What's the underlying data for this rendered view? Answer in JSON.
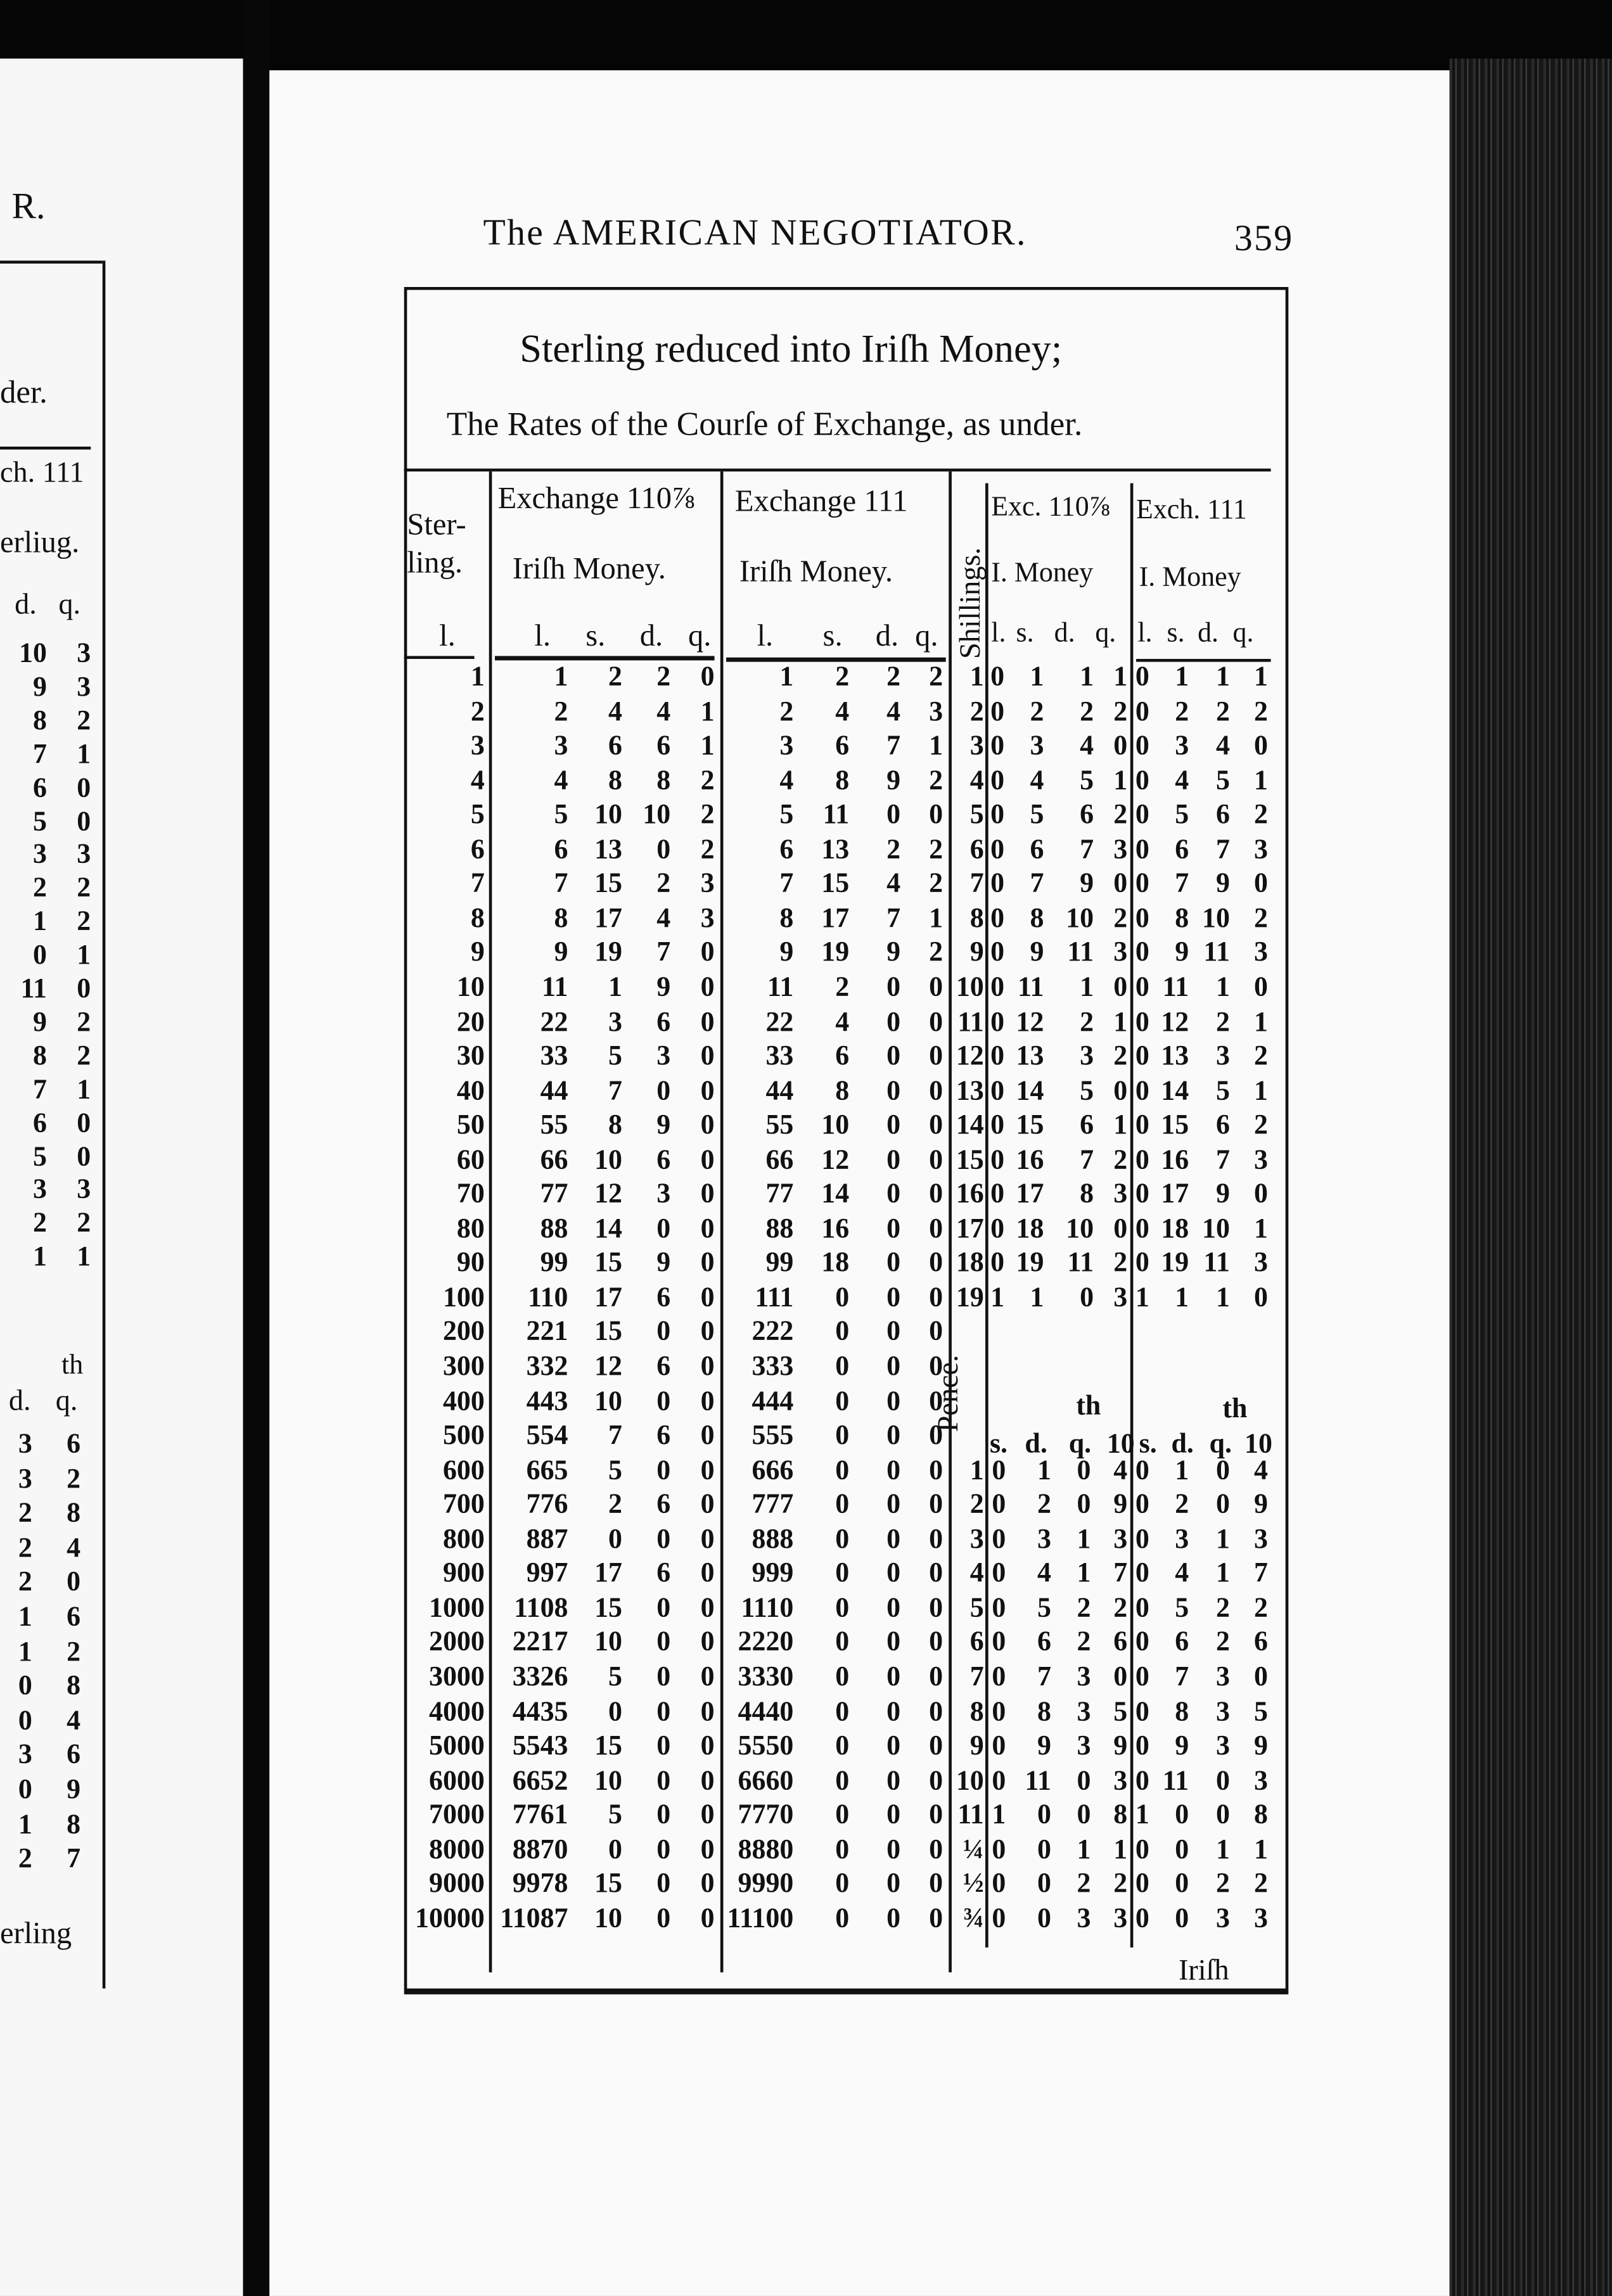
{
  "running_head": {
    "title": "The AMERICAN NEGOTIATOR.",
    "page_number": "359"
  },
  "left_page": {
    "running_head_fragment": "R.",
    "fragments": [
      "der.",
      "ch. 111",
      "erliug."
    ],
    "col_headers": [
      "d.",
      "q."
    ],
    "upper_rows": [
      [
        "10",
        "3"
      ],
      [
        "9",
        "3"
      ],
      [
        "8",
        "2"
      ],
      [
        "7",
        "1"
      ],
      [
        "6",
        "0"
      ],
      [
        "5",
        "0"
      ],
      [
        "3",
        "3"
      ],
      [
        "2",
        "2"
      ],
      [
        "1",
        "2"
      ],
      [
        "0",
        "1"
      ],
      [
        "11",
        "0"
      ],
      [
        "9",
        "2"
      ],
      [
        "8",
        "2"
      ],
      [
        "7",
        "1"
      ],
      [
        "6",
        "0"
      ],
      [
        "5",
        "0"
      ],
      [
        "3",
        "3"
      ],
      [
        "2",
        "2"
      ],
      [
        "1",
        "1"
      ]
    ],
    "th_label": "th",
    "lower_headers": [
      "d.",
      "q."
    ],
    "lower_rows": [
      [
        "3",
        "6"
      ],
      [
        "3",
        "2"
      ],
      [
        "2",
        "8"
      ],
      [
        "2",
        "4"
      ],
      [
        "2",
        "0"
      ],
      [
        "1",
        "6"
      ],
      [
        "1",
        "2"
      ],
      [
        "0",
        "8"
      ],
      [
        "0",
        "4"
      ],
      [
        "3",
        "6"
      ],
      [
        "0",
        "9"
      ],
      [
        "1",
        "8"
      ],
      [
        "2",
        "7"
      ]
    ],
    "catchword_fragment": "erling"
  },
  "table": {
    "title": "Sterling reduced into Iriſh Money;",
    "subtitle": "The Rates of the Courſe of Exchange, as under.",
    "headers": {
      "sterling": [
        "Ster-",
        "ling.",
        "l."
      ],
      "ex110": {
        "title": "Exchange 110⅞",
        "sub": "Iriſh Money.",
        "units": [
          "l.",
          "s.",
          "d.",
          "q."
        ]
      },
      "ex111": {
        "title": "Exchange 111",
        "sub": "Iriſh Money.",
        "units": [
          "l.",
          "s.",
          "d.",
          "q."
        ]
      },
      "shillings": "Shillings.",
      "exc110": {
        "title": "Exc. 110⅞",
        "sub": "I. Money",
        "units": [
          "l.",
          "s.",
          "d.",
          "q."
        ]
      },
      "exch111": {
        "title": "Exch. 111",
        "sub": "I. Money",
        "units": [
          "l.",
          "s.",
          "d.",
          "q."
        ]
      },
      "pence": "Pence.",
      "pence_units": [
        "s.",
        "d.",
        "q.",
        "10"
      ],
      "pence_th": "th"
    },
    "sterling": [
      "1",
      "2",
      "3",
      "4",
      "5",
      "6",
      "7",
      "8",
      "9",
      "10",
      "20",
      "30",
      "40",
      "50",
      "60",
      "70",
      "80",
      "90",
      "100",
      "200",
      "300",
      "400",
      "500",
      "600",
      "700",
      "800",
      "900",
      "1000",
      "2000",
      "3000",
      "4000",
      "5000",
      "6000",
      "7000",
      "8000",
      "9000",
      "10000"
    ],
    "ex110": [
      [
        "1",
        "2",
        "2",
        "0"
      ],
      [
        "2",
        "4",
        "4",
        "1"
      ],
      [
        "3",
        "6",
        "6",
        "1"
      ],
      [
        "4",
        "8",
        "8",
        "2"
      ],
      [
        "5",
        "10",
        "10",
        "2"
      ],
      [
        "6",
        "13",
        "0",
        "2"
      ],
      [
        "7",
        "15",
        "2",
        "3"
      ],
      [
        "8",
        "17",
        "4",
        "3"
      ],
      [
        "9",
        "19",
        "7",
        "0"
      ],
      [
        "11",
        "1",
        "9",
        "0"
      ],
      [
        "22",
        "3",
        "6",
        "0"
      ],
      [
        "33",
        "5",
        "3",
        "0"
      ],
      [
        "44",
        "7",
        "0",
        "0"
      ],
      [
        "55",
        "8",
        "9",
        "0"
      ],
      [
        "66",
        "10",
        "6",
        "0"
      ],
      [
        "77",
        "12",
        "3",
        "0"
      ],
      [
        "88",
        "14",
        "0",
        "0"
      ],
      [
        "99",
        "15",
        "9",
        "0"
      ],
      [
        "110",
        "17",
        "6",
        "0"
      ],
      [
        "221",
        "15",
        "0",
        "0"
      ],
      [
        "332",
        "12",
        "6",
        "0"
      ],
      [
        "443",
        "10",
        "0",
        "0"
      ],
      [
        "554",
        "7",
        "6",
        "0"
      ],
      [
        "665",
        "5",
        "0",
        "0"
      ],
      [
        "776",
        "2",
        "6",
        "0"
      ],
      [
        "887",
        "0",
        "0",
        "0"
      ],
      [
        "997",
        "17",
        "6",
        "0"
      ],
      [
        "1108",
        "15",
        "0",
        "0"
      ],
      [
        "2217",
        "10",
        "0",
        "0"
      ],
      [
        "3326",
        "5",
        "0",
        "0"
      ],
      [
        "4435",
        "0",
        "0",
        "0"
      ],
      [
        "5543",
        "15",
        "0",
        "0"
      ],
      [
        "6652",
        "10",
        "0",
        "0"
      ],
      [
        "7761",
        "5",
        "0",
        "0"
      ],
      [
        "8870",
        "0",
        "0",
        "0"
      ],
      [
        "9978",
        "15",
        "0",
        "0"
      ],
      [
        "11087",
        "10",
        "0",
        "0"
      ]
    ],
    "ex111": [
      [
        "1",
        "2",
        "2",
        "2"
      ],
      [
        "2",
        "4",
        "4",
        "3"
      ],
      [
        "3",
        "6",
        "7",
        "1"
      ],
      [
        "4",
        "8",
        "9",
        "2"
      ],
      [
        "5",
        "11",
        "0",
        "0"
      ],
      [
        "6",
        "13",
        "2",
        "2"
      ],
      [
        "7",
        "15",
        "4",
        "2"
      ],
      [
        "8",
        "17",
        "7",
        "1"
      ],
      [
        "9",
        "19",
        "9",
        "2"
      ],
      [
        "11",
        "2",
        "0",
        "0"
      ],
      [
        "22",
        "4",
        "0",
        "0"
      ],
      [
        "33",
        "6",
        "0",
        "0"
      ],
      [
        "44",
        "8",
        "0",
        "0"
      ],
      [
        "55",
        "10",
        "0",
        "0"
      ],
      [
        "66",
        "12",
        "0",
        "0"
      ],
      [
        "77",
        "14",
        "0",
        "0"
      ],
      [
        "88",
        "16",
        "0",
        "0"
      ],
      [
        "99",
        "18",
        "0",
        "0"
      ],
      [
        "111",
        "0",
        "0",
        "0"
      ],
      [
        "222",
        "0",
        "0",
        "0"
      ],
      [
        "333",
        "0",
        "0",
        "0"
      ],
      [
        "444",
        "0",
        "0",
        "0"
      ],
      [
        "555",
        "0",
        "0",
        "0"
      ],
      [
        "666",
        "0",
        "0",
        "0"
      ],
      [
        "777",
        "0",
        "0",
        "0"
      ],
      [
        "888",
        "0",
        "0",
        "0"
      ],
      [
        "999",
        "0",
        "0",
        "0"
      ],
      [
        "1110",
        "0",
        "0",
        "0"
      ],
      [
        "2220",
        "0",
        "0",
        "0"
      ],
      [
        "3330",
        "0",
        "0",
        "0"
      ],
      [
        "4440",
        "0",
        "0",
        "0"
      ],
      [
        "5550",
        "0",
        "0",
        "0"
      ],
      [
        "6660",
        "0",
        "0",
        "0"
      ],
      [
        "7770",
        "0",
        "0",
        "0"
      ],
      [
        "8880",
        "0",
        "0",
        "0"
      ],
      [
        "9990",
        "0",
        "0",
        "0"
      ],
      [
        "11100",
        "0",
        "0",
        "0"
      ]
    ],
    "shillings": [
      "1",
      "2",
      "3",
      "4",
      "5",
      "6",
      "7",
      "8",
      "9",
      "10",
      "11",
      "12",
      "13",
      "14",
      "15",
      "16",
      "17",
      "18",
      "19"
    ],
    "shil_exc110": [
      [
        "0",
        "1",
        "1",
        "1"
      ],
      [
        "0",
        "2",
        "2",
        "2"
      ],
      [
        "0",
        "3",
        "4",
        "0"
      ],
      [
        "0",
        "4",
        "5",
        "1"
      ],
      [
        "0",
        "5",
        "6",
        "2"
      ],
      [
        "0",
        "6",
        "7",
        "3"
      ],
      [
        "0",
        "7",
        "9",
        "0"
      ],
      [
        "0",
        "8",
        "10",
        "2"
      ],
      [
        "0",
        "9",
        "11",
        "3"
      ],
      [
        "0",
        "11",
        "1",
        "0"
      ],
      [
        "0",
        "12",
        "2",
        "1"
      ],
      [
        "0",
        "13",
        "3",
        "2"
      ],
      [
        "0",
        "14",
        "5",
        "0"
      ],
      [
        "0",
        "15",
        "6",
        "1"
      ],
      [
        "0",
        "16",
        "7",
        "2"
      ],
      [
        "0",
        "17",
        "8",
        "3"
      ],
      [
        "0",
        "18",
        "10",
        "0"
      ],
      [
        "0",
        "19",
        "11",
        "2"
      ],
      [
        "1",
        "1",
        "0",
        "3"
      ]
    ],
    "shil_exch111": [
      [
        "0",
        "1",
        "1",
        "1"
      ],
      [
        "0",
        "2",
        "2",
        "2"
      ],
      [
        "0",
        "3",
        "4",
        "0"
      ],
      [
        "0",
        "4",
        "5",
        "1"
      ],
      [
        "0",
        "5",
        "6",
        "2"
      ],
      [
        "0",
        "6",
        "7",
        "3"
      ],
      [
        "0",
        "7",
        "9",
        "0"
      ],
      [
        "0",
        "8",
        "10",
        "2"
      ],
      [
        "0",
        "9",
        "11",
        "3"
      ],
      [
        "0",
        "11",
        "1",
        "0"
      ],
      [
        "0",
        "12",
        "2",
        "1"
      ],
      [
        "0",
        "13",
        "3",
        "2"
      ],
      [
        "0",
        "14",
        "5",
        "1"
      ],
      [
        "0",
        "15",
        "6",
        "2"
      ],
      [
        "0",
        "16",
        "7",
        "3"
      ],
      [
        "0",
        "17",
        "9",
        "0"
      ],
      [
        "0",
        "18",
        "10",
        "1"
      ],
      [
        "0",
        "19",
        "11",
        "3"
      ],
      [
        "1",
        "1",
        "1",
        "0"
      ]
    ],
    "pence": [
      "1",
      "2",
      "3",
      "4",
      "5",
      "6",
      "7",
      "8",
      "9",
      "10",
      "11",
      "¼",
      "½",
      "¾"
    ],
    "pence_exc110": [
      [
        "0",
        "1",
        "0",
        "4"
      ],
      [
        "0",
        "2",
        "0",
        "9"
      ],
      [
        "0",
        "3",
        "1",
        "3"
      ],
      [
        "0",
        "4",
        "1",
        "7"
      ],
      [
        "0",
        "5",
        "2",
        "2"
      ],
      [
        "0",
        "6",
        "2",
        "6"
      ],
      [
        "0",
        "7",
        "3",
        "0"
      ],
      [
        "0",
        "8",
        "3",
        "5"
      ],
      [
        "0",
        "9",
        "3",
        "9"
      ],
      [
        "0",
        "11",
        "0",
        "3"
      ],
      [
        "1",
        "0",
        "0",
        "8"
      ],
      [
        "0",
        "0",
        "1",
        "1"
      ],
      [
        "0",
        "0",
        "2",
        "2"
      ],
      [
        "0",
        "0",
        "3",
        "3"
      ]
    ],
    "pence_exch111": [
      [
        "0",
        "1",
        "0",
        "4"
      ],
      [
        "0",
        "2",
        "0",
        "9"
      ],
      [
        "0",
        "3",
        "1",
        "3"
      ],
      [
        "0",
        "4",
        "1",
        "7"
      ],
      [
        "0",
        "5",
        "2",
        "2"
      ],
      [
        "0",
        "6",
        "2",
        "6"
      ],
      [
        "0",
        "7",
        "3",
        "0"
      ],
      [
        "0",
        "8",
        "3",
        "5"
      ],
      [
        "0",
        "9",
        "3",
        "9"
      ],
      [
        "0",
        "11",
        "0",
        "3"
      ],
      [
        "1",
        "0",
        "0",
        "8"
      ],
      [
        "0",
        "0",
        "1",
        "1"
      ],
      [
        "0",
        "0",
        "2",
        "2"
      ],
      [
        "0",
        "0",
        "3",
        "3"
      ]
    ],
    "catchword": "Iriſh"
  }
}
